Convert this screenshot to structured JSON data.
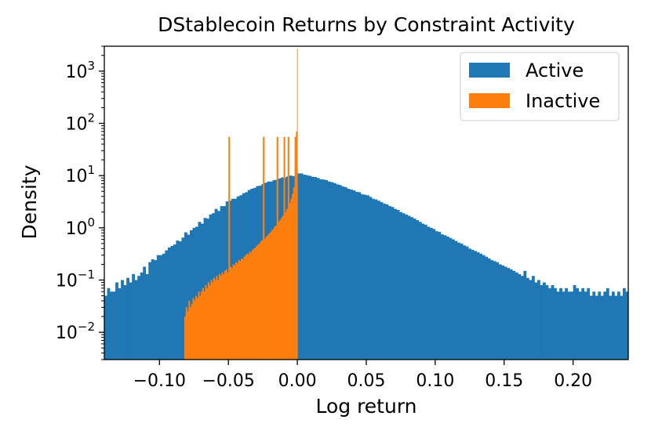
{
  "chart_data": {
    "type": "bar",
    "title": "DStablecoin Returns by Constraint Activity",
    "xlabel": "Log return",
    "ylabel": "Density",
    "xlim": [
      -0.14,
      0.24
    ],
    "ylim": [
      0.003,
      3000
    ],
    "yscale": "log",
    "x_ticks": [
      {
        "value": -0.1,
        "label": "−0.10"
      },
      {
        "value": -0.05,
        "label": "−0.05"
      },
      {
        "value": 0.0,
        "label": "0.00"
      },
      {
        "value": 0.05,
        "label": "0.05"
      },
      {
        "value": 0.1,
        "label": "0.10"
      },
      {
        "value": 0.15,
        "label": "0.15"
      },
      {
        "value": 0.2,
        "label": "0.20"
      }
    ],
    "y_ticks": [
      {
        "value": 0.01,
        "base": "10",
        "exp": "−2"
      },
      {
        "value": 0.1,
        "base": "10",
        "exp": "−1"
      },
      {
        "value": 1,
        "base": "10",
        "exp": "0"
      },
      {
        "value": 10,
        "base": "10",
        "exp": "1"
      },
      {
        "value": 100,
        "base": "10",
        "exp": "2"
      },
      {
        "value": 1000,
        "base": "10",
        "exp": "3"
      }
    ],
    "grid": false,
    "legend_position": "top-right",
    "series": [
      {
        "name": "Active",
        "color": "#1f77b4",
        "bin_width": 0.002,
        "x": [
          -0.14,
          -0.138,
          -0.136,
          -0.134,
          -0.132,
          -0.13,
          -0.128,
          -0.126,
          -0.124,
          -0.122,
          -0.12,
          -0.118,
          -0.116,
          -0.114,
          -0.112,
          -0.11,
          -0.108,
          -0.106,
          -0.104,
          -0.102,
          -0.1,
          -0.098,
          -0.096,
          -0.094,
          -0.092,
          -0.09,
          -0.088,
          -0.086,
          -0.084,
          -0.082,
          -0.08,
          -0.078,
          -0.076,
          -0.074,
          -0.072,
          -0.07,
          -0.068,
          -0.066,
          -0.064,
          -0.062,
          -0.06,
          -0.058,
          -0.056,
          -0.054,
          -0.052,
          -0.05,
          -0.048,
          -0.046,
          -0.044,
          -0.042,
          -0.04,
          -0.038,
          -0.036,
          -0.034,
          -0.032,
          -0.03,
          -0.028,
          -0.026,
          -0.024,
          -0.022,
          -0.02,
          -0.018,
          -0.016,
          -0.014,
          -0.012,
          -0.01,
          -0.008,
          -0.006,
          -0.004,
          -0.002,
          0,
          0.002,
          0.004,
          0.006,
          0.008,
          0.01,
          0.012,
          0.014,
          0.016,
          0.018,
          0.02,
          0.022,
          0.024,
          0.026,
          0.028,
          0.03,
          0.032,
          0.034,
          0.036,
          0.038,
          0.04,
          0.042,
          0.044,
          0.046,
          0.048,
          0.05,
          0.052,
          0.054,
          0.056,
          0.058,
          0.06,
          0.062,
          0.064,
          0.066,
          0.068,
          0.07,
          0.072,
          0.074,
          0.076,
          0.078,
          0.08,
          0.082,
          0.084,
          0.086,
          0.088,
          0.09,
          0.092,
          0.094,
          0.096,
          0.098,
          0.1,
          0.102,
          0.104,
          0.106,
          0.108,
          0.11,
          0.112,
          0.114,
          0.116,
          0.118,
          0.12,
          0.122,
          0.124,
          0.126,
          0.128,
          0.13,
          0.132,
          0.134,
          0.136,
          0.138,
          0.14,
          0.142,
          0.144,
          0.146,
          0.148,
          0.15,
          0.152,
          0.154,
          0.156,
          0.158,
          0.16,
          0.162,
          0.164,
          0.166,
          0.168,
          0.17,
          0.172,
          0.174,
          0.176,
          0.178,
          0.18,
          0.182,
          0.184,
          0.186,
          0.188,
          0.19,
          0.192,
          0.194,
          0.196,
          0.198,
          0.2,
          0.202,
          0.204,
          0.206,
          0.208,
          0.21,
          0.212,
          0.214,
          0.216,
          0.218,
          0.22,
          0.222,
          0.224,
          0.226,
          0.228,
          0.23,
          0.232,
          0.234,
          0.236,
          0.238
        ],
        "values": [
          0.05,
          0.07,
          0.06,
          0.06,
          0.09,
          0.07,
          0.1,
          0.08,
          0.11,
          0.09,
          0.13,
          0.1,
          0.12,
          0.14,
          0.18,
          0.13,
          0.22,
          0.25,
          0.24,
          0.3,
          0.3,
          0.32,
          0.37,
          0.42,
          0.45,
          0.48,
          0.57,
          0.55,
          0.65,
          0.82,
          0.74,
          0.9,
          1,
          1.05,
          1.3,
          1.2,
          1.55,
          1.5,
          1.8,
          1.9,
          2.3,
          2.1,
          2.6,
          2.6,
          3.2,
          3.3,
          3.6,
          3.6,
          4,
          4.2,
          4.6,
          4.8,
          5.3,
          5.6,
          5.8,
          6.3,
          6.4,
          6.9,
          7.3,
          7.7,
          7.7,
          8.2,
          8.3,
          8.8,
          9.2,
          9.2,
          9.6,
          10,
          9.8,
          10.5,
          11,
          11,
          10.4,
          10.2,
          9.9,
          9.5,
          9.4,
          9,
          8.5,
          8.4,
          8.2,
          7.7,
          7.5,
          7.2,
          6.8,
          6.6,
          6.2,
          6,
          5.6,
          5.4,
          5.2,
          4.9,
          4.8,
          4.4,
          4.3,
          4.2,
          3.9,
          3.6,
          3.5,
          3.3,
          3.1,
          2.9,
          2.8,
          2.6,
          2.5,
          2.3,
          2.2,
          2,
          1.9,
          1.8,
          1.7,
          1.6,
          1.5,
          1.4,
          1.3,
          1.2,
          1.15,
          1.05,
          1,
          0.95,
          0.86,
          0.84,
          0.75,
          0.72,
          0.68,
          0.64,
          0.6,
          0.56,
          0.52,
          0.5,
          0.46,
          0.44,
          0.4,
          0.38,
          0.36,
          0.34,
          0.32,
          0.3,
          0.28,
          0.26,
          0.24,
          0.23,
          0.22,
          0.2,
          0.19,
          0.18,
          0.17,
          0.16,
          0.15,
          0.14,
          0.13,
          0.12,
          0.15,
          0.11,
          0.1,
          0.12,
          0.09,
          0.1,
          0.08,
          0.09,
          0.08,
          0.07,
          0.08,
          0.07,
          0.06,
          0.07,
          0.06,
          0.07,
          0.06,
          0.06,
          0.08,
          0.07,
          0.06,
          0.07,
          0.06,
          0.07,
          0.05,
          0.06,
          0.05,
          0.06,
          0.05,
          0.06,
          0.07,
          0.05,
          0.06,
          0.05,
          0.06,
          0.05,
          0.07,
          0.06
        ]
      },
      {
        "name": "Inactive",
        "color": "#ff7f0e",
        "bin_width": 0.001,
        "x": [
          -0.082,
          -0.081,
          -0.08,
          -0.079,
          -0.078,
          -0.077,
          -0.076,
          -0.075,
          -0.074,
          -0.073,
          -0.072,
          -0.071,
          -0.07,
          -0.069,
          -0.068,
          -0.067,
          -0.066,
          -0.065,
          -0.064,
          -0.063,
          -0.062,
          -0.061,
          -0.06,
          -0.059,
          -0.058,
          -0.057,
          -0.056,
          -0.055,
          -0.054,
          -0.053,
          -0.052,
          -0.051,
          -0.05,
          -0.049,
          -0.048,
          -0.047,
          -0.046,
          -0.045,
          -0.044,
          -0.043,
          -0.042,
          -0.041,
          -0.04,
          -0.039,
          -0.038,
          -0.037,
          -0.036,
          -0.035,
          -0.034,
          -0.033,
          -0.032,
          -0.031,
          -0.03,
          -0.029,
          -0.028,
          -0.027,
          -0.026,
          -0.025,
          -0.024,
          -0.023,
          -0.022,
          -0.021,
          -0.02,
          -0.019,
          -0.018,
          -0.017,
          -0.016,
          -0.015,
          -0.014,
          -0.013,
          -0.012,
          -0.011,
          -0.01,
          -0.009,
          -0.008,
          -0.007,
          -0.006,
          -0.005,
          -0.004,
          -0.003,
          -0.002,
          -0.001
        ],
        "values": [
          0.02,
          0.03,
          0.025,
          0.04,
          0.03,
          0.035,
          0.045,
          0.04,
          0.05,
          0.045,
          0.06,
          0.05,
          0.06,
          0.07,
          0.06,
          0.08,
          0.07,
          0.09,
          0.08,
          0.1,
          0.09,
          0.11,
          0.1,
          0.12,
          0.1,
          0.13,
          0.12,
          0.14,
          0.13,
          0.15,
          0.16,
          0.14,
          55,
          0.18,
          0.17,
          0.2,
          0.19,
          0.22,
          0.21,
          0.24,
          0.23,
          0.26,
          0.25,
          0.28,
          0.3,
          0.32,
          0.31,
          0.35,
          0.34,
          0.38,
          0.4,
          0.42,
          0.45,
          0.48,
          0.5,
          0.55,
          0.58,
          55,
          0.62,
          0.68,
          0.72,
          0.78,
          0.82,
          0.9,
          0.95,
          1.05,
          1.1,
          55,
          1.3,
          1.4,
          1.55,
          1.7,
          55,
          2,
          2.3,
          55,
          3,
          3.6,
          4.5,
          6,
          55,
          70
        ]
      },
      {
        "name": "",
        "color": "#ff7f0e",
        "bin_width": 0.0003,
        "x": [
          -0.0002
        ],
        "values": [
          2700
        ]
      }
    ]
  }
}
